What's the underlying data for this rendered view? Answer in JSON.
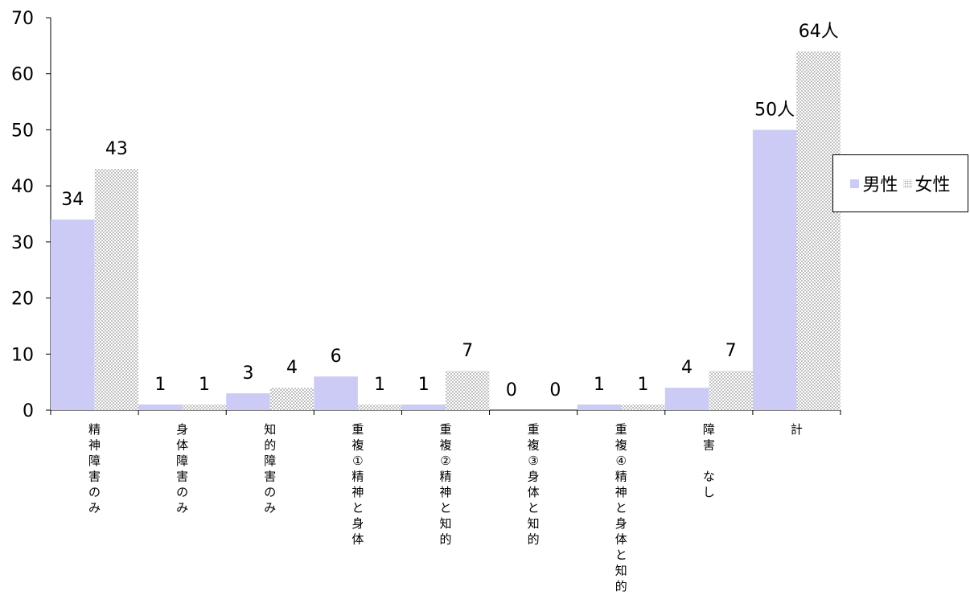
{
  "chart_data": {
    "type": "bar",
    "categories": [
      "精神障害のみ",
      "身体障害のみ",
      "知的障害のみ",
      "重複①精神と身体",
      "重複②精神と知的",
      "重複③身体と知的",
      "重複④精神と身体と知的",
      "障害　なし",
      "計"
    ],
    "series": [
      {
        "name": "男性",
        "values": [
          34,
          1,
          3,
          6,
          1,
          0,
          1,
          4,
          50
        ]
      },
      {
        "name": "女性",
        "values": [
          43,
          1,
          4,
          1,
          7,
          0,
          1,
          7,
          64
        ]
      }
    ],
    "value_labels": [
      [
        "34",
        "1",
        "3",
        "6",
        "1",
        "0",
        "1",
        "4",
        "50人"
      ],
      [
        "43",
        "1",
        "4",
        "1",
        "7",
        "0",
        "1",
        "7",
        "64人"
      ]
    ],
    "y_ticks": [
      "0",
      "10",
      "20",
      "30",
      "40",
      "50",
      "60",
      "70"
    ],
    "ylim": [
      0,
      70
    ],
    "legend_position": "right",
    "grid": false,
    "colors": {
      "male": "#cccbf6",
      "female_dots": "#8a8a8a",
      "axis": "#000000"
    }
  },
  "legend": {
    "male": "男性",
    "female": "女性"
  }
}
